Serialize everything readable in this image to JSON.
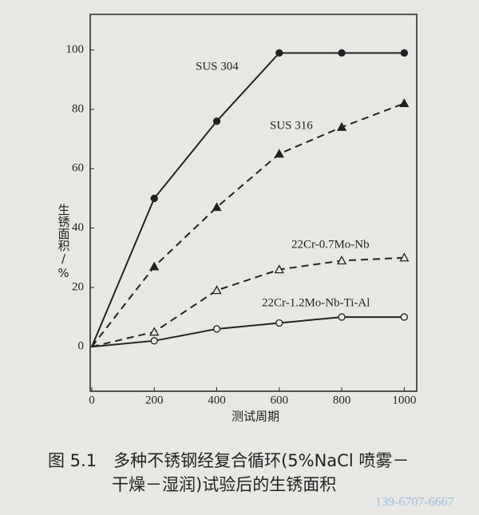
{
  "chart_data": {
    "type": "line",
    "x_label": "测试周期",
    "y_label": "生锈面积/%",
    "x": [
      0,
      200,
      400,
      600,
      800,
      1000
    ],
    "series": [
      {
        "name": "SUS 304",
        "color": "#222222",
        "marker": "filled-circle",
        "dashed": false,
        "values": [
          0,
          50,
          76,
          99,
          99,
          99
        ]
      },
      {
        "name": "SUS 316",
        "color": "#222222",
        "marker": "filled-triangle",
        "dashed": true,
        "values": [
          0,
          27,
          47,
          65,
          74,
          82
        ]
      },
      {
        "name": "22Cr-0.7Mo-Nb",
        "color": "#222222",
        "marker": "open-triangle",
        "dashed": true,
        "values": [
          0,
          5,
          19,
          26,
          29,
          30
        ]
      },
      {
        "name": "22Cr-1.2Mo-Nb-Ti-Al",
        "color": "#222222",
        "marker": "open-circle",
        "dashed": false,
        "values": [
          0,
          2,
          6,
          8,
          10,
          10
        ]
      }
    ],
    "xlim": [
      -5,
      1040
    ],
    "ylim": [
      -15,
      112
    ],
    "xticks": [
      0,
      200,
      400,
      600,
      800,
      1000
    ],
    "yticks": [
      0,
      20,
      40,
      60,
      80,
      100
    ],
    "caption": [
      "图 5.1　多种不锈钢经复合循环(5%NaCl 喷雾－",
      "干燥－湿润)试验后的生锈面积"
    ],
    "watermark": "139-6707-6667"
  }
}
